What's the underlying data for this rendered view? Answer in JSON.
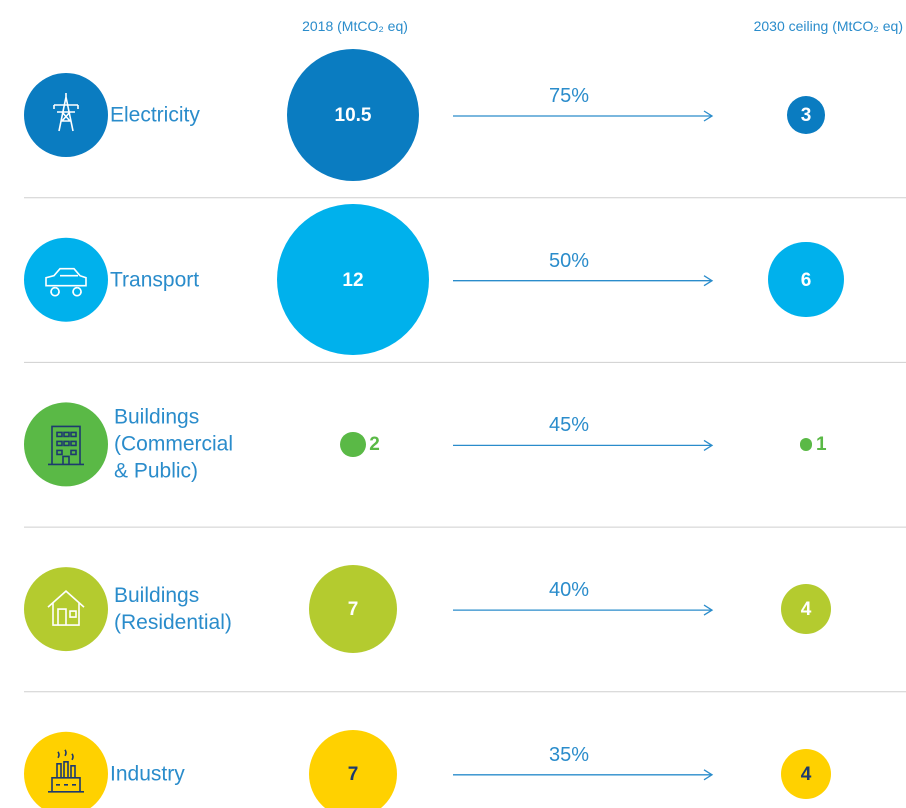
{
  "chart_data": {
    "type": "bubble",
    "categories": [
      "Electricity",
      "Transport",
      "Buildings (Commercial & Public)",
      "Buildings (Residential)",
      "Industry"
    ],
    "colors": [
      "#0a7cc1",
      "#00b1ec",
      "#5ab946",
      "#b4cb2f",
      "#ffd100"
    ],
    "label_colors": [
      "#ffffff",
      "#ffffff",
      "#5ab946",
      "#ffffff",
      "#1d3a6e"
    ],
    "category_color": "#2a8ccb",
    "series": [
      {
        "name": "2018 (MtCO₂ eq)",
        "values": [
          10.5,
          12,
          2,
          7,
          7
        ]
      },
      {
        "name": "2030 ceiling (MtCO₂ eq)",
        "values": [
          3,
          6,
          1,
          4,
          4
        ]
      }
    ],
    "reductions": {
      "values": [
        75,
        50,
        45,
        40,
        35
      ],
      "value_labels": [
        "75%",
        "50%",
        "45%",
        "40%",
        "35%"
      ]
    }
  }
}
